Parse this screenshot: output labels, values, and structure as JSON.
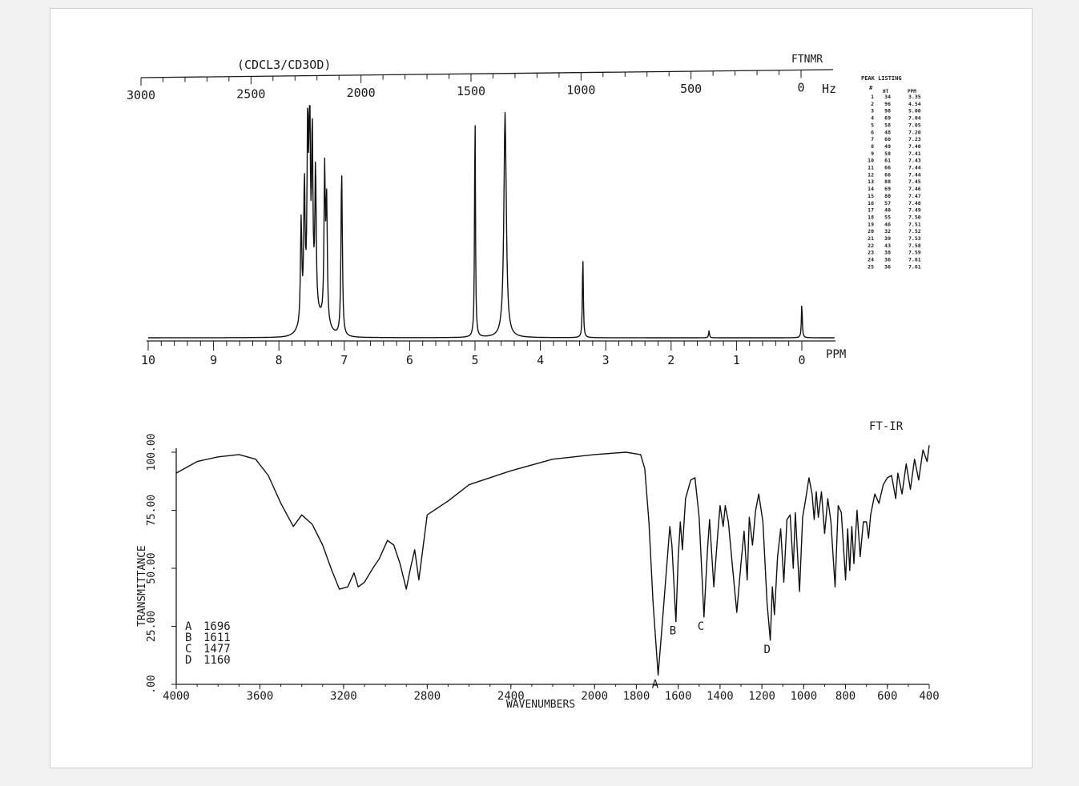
{
  "nmr": {
    "solvent": "(CDCL3/CD3OD)",
    "label": "FTNMR",
    "hz_unit": "Hz",
    "ppm_unit": "PPM",
    "peak_listing_title": "PEAK LISTING",
    "col_num": "#",
    "col_ht": "HT",
    "col_ppm": "PPM"
  },
  "ir": {
    "label": "FT-IR",
    "xlabel": "WAVENUMBERS",
    "ylabel": "TRANSMITTANCE",
    "legend": [
      {
        "key": "A",
        "value": "1696"
      },
      {
        "key": "B",
        "value": "1611"
      },
      {
        "key": "C",
        "value": "1477"
      },
      {
        "key": "D",
        "value": "1160"
      }
    ]
  },
  "chart_data": [
    {
      "type": "line",
      "title": "",
      "xlabel": "PPM",
      "x2label": "Hz",
      "xlim": [
        10,
        0
      ],
      "x2lim": [
        3000,
        0
      ],
      "x_ticks": [
        10,
        9,
        8,
        7,
        6,
        5,
        4,
        3,
        2,
        1,
        0
      ],
      "x2_ticks": [
        3000,
        2500,
        2000,
        1500,
        1000,
        500,
        0
      ],
      "peaks": [
        {
          "ppm": 7.66,
          "height": 0.44
        },
        {
          "ppm": 7.61,
          "height": 0.58
        },
        {
          "ppm": 7.56,
          "height": 0.78
        },
        {
          "ppm": 7.53,
          "height": 0.91
        },
        {
          "ppm": 7.49,
          "height": 0.76
        },
        {
          "ppm": 7.44,
          "height": 0.62
        },
        {
          "ppm": 7.3,
          "height": 0.64
        },
        {
          "ppm": 7.27,
          "height": 0.5
        },
        {
          "ppm": 7.04,
          "height": 0.72
        },
        {
          "ppm": 5.0,
          "height": 1.0
        },
        {
          "ppm": 4.54,
          "height": 0.97
        },
        {
          "ppm": 3.35,
          "height": 0.36
        },
        {
          "ppm": 1.42,
          "height": 0.03
        },
        {
          "ppm": 0.0,
          "height": 0.15
        }
      ],
      "peak_listing": [
        {
          "n": "1",
          "ht": "34",
          "ppm": "3.35"
        },
        {
          "n": "2",
          "ht": "96",
          "ppm": "4.54"
        },
        {
          "n": "3",
          "ht": "98",
          "ppm": "5.00"
        },
        {
          "n": "4",
          "ht": "69",
          "ppm": "7.04"
        },
        {
          "n": "5",
          "ht": "58",
          "ppm": "7.05"
        },
        {
          "n": "6",
          "ht": "48",
          "ppm": "7.20"
        },
        {
          "n": "7",
          "ht": "60",
          "ppm": "7.23"
        },
        {
          "n": "8",
          "ht": "49",
          "ppm": "7.40"
        },
        {
          "n": "9",
          "ht": "58",
          "ppm": "7.41"
        },
        {
          "n": "10",
          "ht": "61",
          "ppm": "7.43"
        },
        {
          "n": "11",
          "ht": "66",
          "ppm": "7.44"
        },
        {
          "n": "12",
          "ht": "66",
          "ppm": "7.44"
        },
        {
          "n": "13",
          "ht": "88",
          "ppm": "7.45"
        },
        {
          "n": "14",
          "ht": "69",
          "ppm": "7.46"
        },
        {
          "n": "15",
          "ht": "80",
          "ppm": "7.47"
        },
        {
          "n": "16",
          "ht": "57",
          "ppm": "7.48"
        },
        {
          "n": "17",
          "ht": "40",
          "ppm": "7.49"
        },
        {
          "n": "18",
          "ht": "55",
          "ppm": "7.50"
        },
        {
          "n": "19",
          "ht": "46",
          "ppm": "7.51"
        },
        {
          "n": "20",
          "ht": "32",
          "ppm": "7.52"
        },
        {
          "n": "21",
          "ht": "39",
          "ppm": "7.53"
        },
        {
          "n": "22",
          "ht": "43",
          "ppm": "7.58"
        },
        {
          "n": "23",
          "ht": "38",
          "ppm": "7.59"
        },
        {
          "n": "24",
          "ht": "36",
          "ppm": "7.61"
        },
        {
          "n": "25",
          "ht": "36",
          "ppm": "7.61"
        }
      ]
    },
    {
      "type": "line",
      "title": "",
      "xlabel": "WAVENUMBERS",
      "ylabel": "TRANSMITTANCE",
      "xlim": [
        4000,
        400
      ],
      "ylim": [
        0,
        100
      ],
      "x_ticks": [
        4000,
        3600,
        3200,
        2800,
        2400,
        2000,
        1800,
        1600,
        1400,
        1200,
        1000,
        800,
        600,
        400
      ],
      "y_ticks": [
        ".00",
        "25.00",
        "50.00",
        "75.00",
        "100.00"
      ],
      "points": [
        [
          4000,
          91
        ],
        [
          3900,
          96
        ],
        [
          3800,
          98
        ],
        [
          3700,
          99
        ],
        [
          3620,
          97
        ],
        [
          3560,
          90
        ],
        [
          3500,
          78
        ],
        [
          3440,
          68
        ],
        [
          3400,
          73
        ],
        [
          3350,
          69
        ],
        [
          3300,
          60
        ],
        [
          3260,
          50
        ],
        [
          3220,
          41
        ],
        [
          3180,
          42
        ],
        [
          3150,
          48
        ],
        [
          3130,
          42
        ],
        [
          3100,
          44
        ],
        [
          3060,
          50
        ],
        [
          3030,
          54
        ],
        [
          2990,
          62
        ],
        [
          2960,
          60
        ],
        [
          2930,
          52
        ],
        [
          2900,
          41
        ],
        [
          2880,
          50
        ],
        [
          2860,
          58
        ],
        [
          2840,
          45
        ],
        [
          2800,
          73
        ],
        [
          2700,
          79
        ],
        [
          2600,
          86
        ],
        [
          2400,
          92
        ],
        [
          2200,
          97
        ],
        [
          2000,
          99
        ],
        [
          1850,
          100
        ],
        [
          1780,
          99
        ],
        [
          1760,
          93
        ],
        [
          1740,
          70
        ],
        [
          1720,
          35
        ],
        [
          1696,
          4
        ],
        [
          1680,
          22
        ],
        [
          1660,
          45
        ],
        [
          1640,
          68
        ],
        [
          1630,
          60
        ],
        [
          1611,
          27
        ],
        [
          1600,
          55
        ],
        [
          1590,
          70
        ],
        [
          1580,
          58
        ],
        [
          1565,
          80
        ],
        [
          1540,
          88
        ],
        [
          1520,
          89
        ],
        [
          1500,
          72
        ],
        [
          1477,
          29
        ],
        [
          1460,
          58
        ],
        [
          1450,
          71
        ],
        [
          1430,
          42
        ],
        [
          1410,
          66
        ],
        [
          1400,
          77
        ],
        [
          1385,
          68
        ],
        [
          1375,
          77
        ],
        [
          1360,
          70
        ],
        [
          1340,
          50
        ],
        [
          1320,
          31
        ],
        [
          1300,
          52
        ],
        [
          1285,
          66
        ],
        [
          1270,
          45
        ],
        [
          1260,
          72
        ],
        [
          1245,
          60
        ],
        [
          1230,
          75
        ],
        [
          1215,
          82
        ],
        [
          1195,
          70
        ],
        [
          1175,
          35
        ],
        [
          1160,
          19
        ],
        [
          1150,
          42
        ],
        [
          1140,
          30
        ],
        [
          1125,
          55
        ],
        [
          1110,
          67
        ],
        [
          1095,
          44
        ],
        [
          1080,
          71
        ],
        [
          1065,
          73
        ],
        [
          1050,
          50
        ],
        [
          1040,
          74
        ],
        [
          1020,
          40
        ],
        [
          1005,
          72
        ],
        [
          990,
          80
        ],
        [
          975,
          89
        ],
        [
          960,
          82
        ],
        [
          950,
          71
        ],
        [
          940,
          83
        ],
        [
          930,
          72
        ],
        [
          915,
          83
        ],
        [
          900,
          65
        ],
        [
          885,
          80
        ],
        [
          870,
          70
        ],
        [
          850,
          42
        ],
        [
          835,
          77
        ],
        [
          820,
          74
        ],
        [
          800,
          45
        ],
        [
          790,
          67
        ],
        [
          780,
          49
        ],
        [
          770,
          68
        ],
        [
          760,
          52
        ],
        [
          745,
          75
        ],
        [
          730,
          55
        ],
        [
          715,
          70
        ],
        [
          700,
          70
        ],
        [
          690,
          63
        ],
        [
          680,
          73
        ],
        [
          660,
          82
        ],
        [
          640,
          78
        ],
        [
          620,
          86
        ],
        [
          600,
          89
        ],
        [
          580,
          90
        ],
        [
          560,
          80
        ],
        [
          550,
          91
        ],
        [
          530,
          82
        ],
        [
          510,
          95
        ],
        [
          490,
          84
        ],
        [
          470,
          97
        ],
        [
          450,
          88
        ],
        [
          430,
          101
        ],
        [
          410,
          96
        ],
        [
          400,
          103
        ]
      ],
      "annotations": [
        {
          "label": "A",
          "x": 1696
        },
        {
          "label": "B",
          "x": 1611
        },
        {
          "label": "C",
          "x": 1477
        },
        {
          "label": "D",
          "x": 1160
        }
      ]
    }
  ]
}
